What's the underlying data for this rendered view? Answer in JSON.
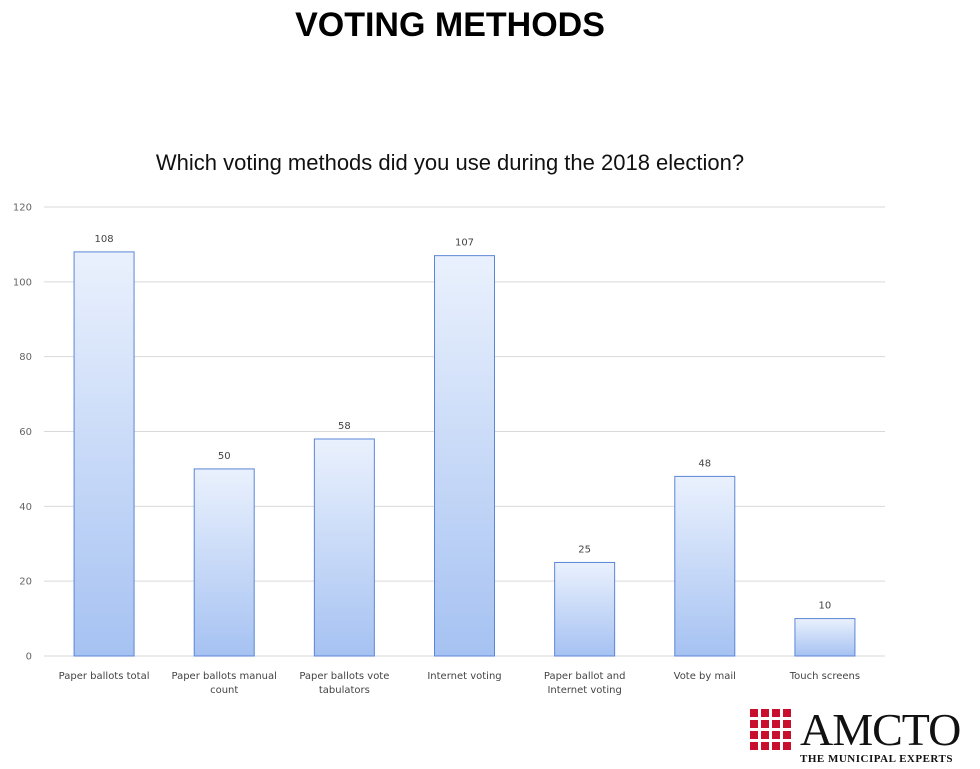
{
  "page": {
    "title": "VOTING METHODS"
  },
  "chart_data": {
    "type": "bar",
    "title": "Which voting methods did you use during the 2018 election?",
    "categories": [
      [
        "Paper ballots total"
      ],
      [
        "Paper ballots manual",
        "count"
      ],
      [
        "Paper ballots vote",
        "tabulators"
      ],
      [
        "Internet voting"
      ],
      [
        "Paper ballot and",
        "Internet voting"
      ],
      [
        "Vote by mail"
      ],
      [
        "Touch screens"
      ]
    ],
    "values": [
      108,
      50,
      58,
      107,
      25,
      48,
      10
    ],
    "ylim": [
      0,
      120
    ],
    "yticks": [
      0,
      20,
      40,
      60,
      80,
      100,
      120
    ],
    "grid": true,
    "xlabel": "",
    "ylabel": "",
    "colors": {
      "bar_top": "#eaf1fd",
      "bar_bottom": "#a6c2f2",
      "bar_stroke": "#5b86d6",
      "grid": "#d9d9d9"
    }
  },
  "logo": {
    "text": "AMCTO",
    "tagline": "THE MUNICIPAL EXPERTS",
    "color": "#c8102e"
  }
}
